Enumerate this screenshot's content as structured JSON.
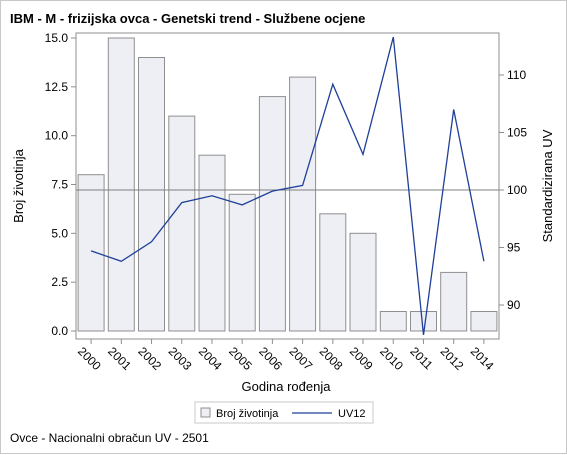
{
  "chart_data": {
    "type": "bar+line",
    "title": "IBM - M - frizijska ovca - Genetski trend - Službene ocjene",
    "xlabel": "Godina rođenja",
    "ylabel": "Broj životinja",
    "y2label": "Standardizirana UV",
    "categories": [
      "2000",
      "2001",
      "2002",
      "2003",
      "2004",
      "2005",
      "2006",
      "2007",
      "2008",
      "2009",
      "2010",
      "2011",
      "2012",
      "2014"
    ],
    "ylim": [
      0,
      15.4
    ],
    "y_ticks": [
      "0.0",
      "2.5",
      "5.0",
      "7.5",
      "10.0",
      "12.5",
      "15.0"
    ],
    "y_tick_values": [
      0,
      2.5,
      5,
      7.5,
      10,
      12.5,
      15
    ],
    "y2lim": [
      87.2,
      113.4
    ],
    "y2_ticks": [
      "90",
      "95",
      "100",
      "105",
      "110"
    ],
    "y2_tick_values": [
      90,
      95,
      100,
      105,
      110
    ],
    "reference_line_y2": 100,
    "series": [
      {
        "name": "Broj životinja",
        "kind": "bar",
        "axis": "left",
        "values": [
          8,
          15,
          14,
          11,
          9,
          7,
          12,
          13,
          6,
          5,
          1,
          1,
          3,
          1
        ],
        "color": "#edeff5",
        "stroke": "#8f8f8f"
      },
      {
        "name": "UV12",
        "kind": "line",
        "axis": "right",
        "values": [
          94.7,
          93.8,
          95.5,
          98.9,
          99.5,
          98.7,
          99.9,
          100.4,
          109.2,
          103.1,
          113.3,
          87.4,
          107.0,
          93.8
        ],
        "color": "#1f3f99"
      }
    ],
    "legend_position": "bottom"
  },
  "footnote": "Ovce - Nacionalni obračun UV - 2501",
  "colors": {
    "bar_fill": "#edeff5",
    "bar_stroke": "#8f8f8f",
    "line": "#1f3f99",
    "axis": "#8f8f8f",
    "refline": "#7f7f7f"
  }
}
